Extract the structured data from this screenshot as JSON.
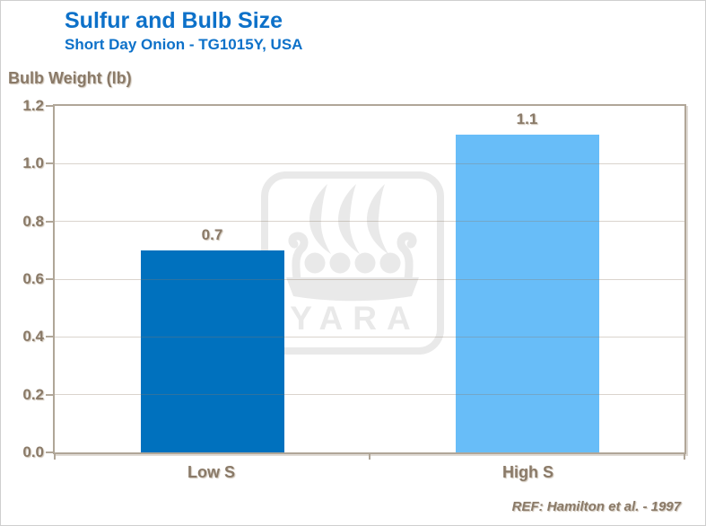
{
  "header": {
    "title": "Sulfur and Bulb Size",
    "subtitle": "Short Day Onion - TG1015Y, USA"
  },
  "footer": {
    "reference": "REF: Hamilton et al. - 1997"
  },
  "watermark": {
    "name": "yara-viking-ship-logo",
    "wordmark": "YARA",
    "color": "#e9e9e9"
  },
  "chart_data": {
    "type": "bar",
    "title": "Sulfur and Bulb Size",
    "subtitle": "Short Day Onion - TG1015Y, USA",
    "xlabel": "",
    "ylabel": "Bulb Weight (lb)",
    "categories": [
      "Low S",
      "High S"
    ],
    "values": [
      0.7,
      1.1
    ],
    "value_labels": [
      "0.7",
      "1.1"
    ],
    "bar_colors": [
      "#0071BE",
      "#68BDF8"
    ],
    "ylim": [
      0,
      1.2
    ],
    "ytick_step": 0.2,
    "ytick_labels": [
      "0.0",
      "0.2",
      "0.4",
      "0.6",
      "0.8",
      "1.0",
      "1.2"
    ],
    "grid": true,
    "legend": false,
    "reference": "REF: Hamilton et al. - 1997",
    "colors": {
      "title": "#0d71c9",
      "text": "#8a7a68",
      "grid_rgba": "rgba(141,122,101,0.32)",
      "axis": "#b0a698",
      "watermark": "#e9e9e9"
    }
  }
}
